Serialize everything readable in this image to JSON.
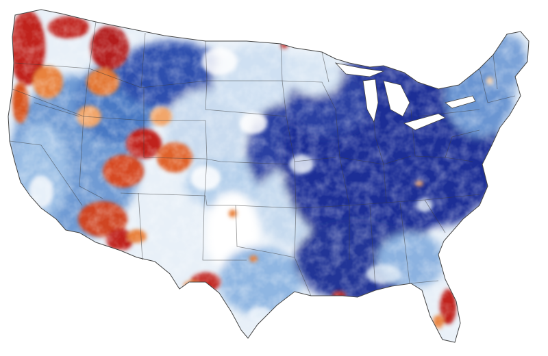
{
  "map": {
    "subject": "contiguous-united-states",
    "colors": {
      "background": "#ffffff",
      "strong_blue": "#1f2f96",
      "medium_blue": "#3d6cc0",
      "light_blue": "#8fb6e2",
      "pale_blue": "#d2e4f5",
      "neutral": "#f4f4f4",
      "pale_orange": "#f7cfa6",
      "orange": "#e9823d",
      "red": "#c0241c",
      "dark_red": "#8e0f0f"
    },
    "regions": [
      {
        "name": "pacific-northwest",
        "tone": "red"
      },
      {
        "name": "northern-rockies",
        "tone": "red"
      },
      {
        "name": "great-basin",
        "tone": "light_blue"
      },
      {
        "name": "california",
        "tone": "light_blue"
      },
      {
        "name": "colorado-plateau",
        "tone": "red"
      },
      {
        "name": "arizona-desert",
        "tone": "orange"
      },
      {
        "name": "west-texas",
        "tone": "red"
      },
      {
        "name": "northern-plains",
        "tone": "light_blue"
      },
      {
        "name": "southern-plains",
        "tone": "pale_blue"
      },
      {
        "name": "upper-midwest",
        "tone": "strong_blue"
      },
      {
        "name": "ohio-valley",
        "tone": "strong_blue"
      },
      {
        "name": "southeast",
        "tone": "strong_blue"
      },
      {
        "name": "gulf-coast",
        "tone": "medium_blue"
      },
      {
        "name": "florida-peninsula",
        "tone": "red"
      },
      {
        "name": "northeast",
        "tone": "medium_blue"
      },
      {
        "name": "new-england",
        "tone": "light_blue"
      }
    ]
  }
}
